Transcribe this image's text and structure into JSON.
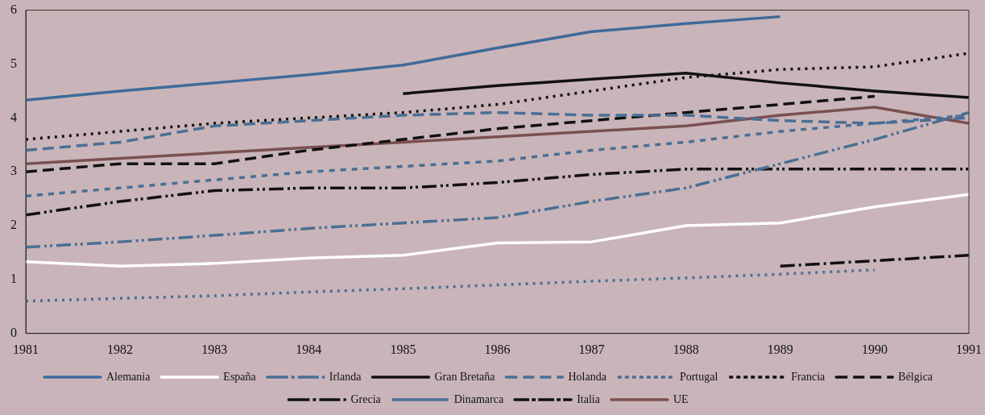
{
  "chart_data": {
    "type": "line",
    "x": [
      1981,
      1982,
      1983,
      1984,
      1985,
      1986,
      1987,
      1988,
      1989,
      1990,
      1991
    ],
    "xlim": [
      1981,
      1991
    ],
    "xticks": [
      1981,
      1982,
      1983,
      1984,
      1985,
      1986,
      1987,
      1988,
      1989,
      1990,
      1991
    ],
    "ylim": [
      0,
      6
    ],
    "yticks": [
      0,
      1,
      2,
      3,
      4,
      5,
      6
    ],
    "grid": false,
    "legend": "bottom",
    "marker": "none",
    "series": [
      {
        "name": "Alemania",
        "color": "#3f6a9a",
        "line_style": "solid",
        "values": [
          4.33,
          4.5,
          4.65,
          4.8,
          4.98,
          5.3,
          5.6,
          5.75,
          5.88,
          null,
          null
        ]
      },
      {
        "name": "España",
        "color": "#ffffff",
        "line_style": "solid",
        "values": [
          1.33,
          1.25,
          1.3,
          1.4,
          1.45,
          1.68,
          1.7,
          2.0,
          2.05,
          2.35,
          2.58
        ]
      },
      {
        "name": "Irlanda",
        "color": "#4a6f94",
        "line_style": "dashdotdot",
        "values": [
          1.6,
          1.7,
          1.82,
          1.95,
          2.05,
          2.15,
          2.45,
          2.7,
          3.15,
          3.6,
          4.1
        ]
      },
      {
        "name": "Gran Bretaña",
        "color": "#111111",
        "line_style": "solid",
        "values": [
          null,
          null,
          null,
          null,
          4.45,
          4.6,
          4.72,
          4.83,
          4.65,
          4.5,
          4.38
        ]
      },
      {
        "name": "Holanda",
        "color": "#4a6f94",
        "line_style": "dashed",
        "values": [
          3.4,
          3.55,
          3.85,
          3.95,
          4.05,
          4.1,
          4.05,
          4.05,
          3.95,
          3.9,
          4.0
        ]
      },
      {
        "name": "Portugal",
        "color": "#4a6f94",
        "line_style": "dotted",
        "values": [
          0.6,
          0.65,
          0.7,
          0.77,
          0.83,
          0.9,
          0.97,
          1.03,
          1.1,
          1.18,
          null
        ]
      },
      {
        "name": "Francia",
        "color": "#111111",
        "line_style": "dotted",
        "values": [
          3.6,
          3.75,
          3.9,
          4.0,
          4.1,
          4.25,
          4.5,
          4.75,
          4.9,
          4.95,
          5.2
        ]
      },
      {
        "name": "Bélgica",
        "color": "#111111",
        "line_style": "dashed",
        "values": [
          3.0,
          3.15,
          3.15,
          3.4,
          3.6,
          3.8,
          3.95,
          4.1,
          4.25,
          4.4,
          null
        ]
      },
      {
        "name": "Grecia",
        "color": "#111111",
        "line_style": "dashdotdot",
        "values": [
          2.2,
          2.45,
          2.65,
          2.7,
          2.7,
          2.8,
          2.95,
          3.05,
          3.05,
          3.05,
          3.05
        ]
      },
      {
        "name": "Dinamarca",
        "color": "#4a6f94",
        "line_style": "shortdash",
        "values": [
          2.55,
          2.7,
          2.85,
          3.0,
          3.1,
          3.2,
          3.4,
          3.55,
          3.75,
          3.9,
          4.05
        ]
      },
      {
        "name": "Italia",
        "color": "#111111",
        "line_style": "dashdot",
        "values": [
          null,
          null,
          null,
          null,
          null,
          null,
          null,
          null,
          1.25,
          1.35,
          1.45
        ]
      },
      {
        "name": "UE",
        "color": "#7a5050",
        "line_style": "solid",
        "values": [
          3.15,
          3.25,
          3.35,
          3.45,
          3.55,
          3.65,
          3.75,
          3.85,
          4.05,
          4.2,
          3.9
        ]
      }
    ]
  }
}
